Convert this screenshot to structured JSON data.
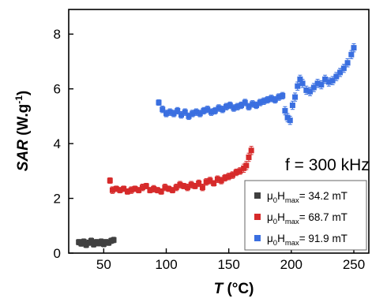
{
  "chart_data": {
    "type": "scatter",
    "title": "",
    "xlabel": {
      "italic": "T",
      "rest": " (°C)"
    },
    "ylabel": {
      "italic": "SAR",
      "rest": " (W.g",
      "sup": "-1",
      "end": ")"
    },
    "xlim": [
      22,
      262
    ],
    "ylim": [
      0,
      8.9
    ],
    "xticks": [
      50,
      100,
      150,
      200,
      250
    ],
    "yticks": [
      0,
      2,
      4,
      6,
      8
    ],
    "xtick_labels": [
      "50",
      "100",
      "150",
      "200",
      "250"
    ],
    "ytick_labels": [
      "0",
      "2",
      "4",
      "6",
      "8"
    ],
    "grid": false,
    "legend_position": "bottom-right",
    "annotation": "f = 300 kHz",
    "series": [
      {
        "name": "μ0Hmax= 34.2 mT",
        "legend": {
          "mu": "μ",
          "mu_sub": "0",
          "h": "H",
          "h_sub": "max",
          "value": "= 34.2 mT"
        },
        "color": "#404040",
        "x": [
          30,
          32,
          34,
          36,
          38,
          40,
          42,
          44,
          46,
          48,
          50,
          52,
          54,
          56,
          58
        ],
        "y": [
          0.4,
          0.35,
          0.42,
          0.3,
          0.38,
          0.45,
          0.32,
          0.4,
          0.36,
          0.42,
          0.33,
          0.4,
          0.38,
          0.45,
          0.48
        ],
        "err": [
          0.1,
          0.1,
          0.1,
          0.1,
          0.1,
          0.1,
          0.1,
          0.1,
          0.1,
          0.1,
          0.1,
          0.1,
          0.1,
          0.1,
          0.1
        ]
      },
      {
        "name": "μ0Hmax= 68.7 mT",
        "legend": {
          "mu": "μ",
          "mu_sub": "0",
          "h": "H",
          "h_sub": "max",
          "value": "= 68.7 mT"
        },
        "color": "#d62a2a",
        "x": [
          55,
          57,
          60,
          63,
          66,
          69,
          72,
          75,
          78,
          81,
          84,
          87,
          90,
          93,
          96,
          99,
          102,
          105,
          108,
          111,
          114,
          117,
          120,
          123,
          126,
          129,
          132,
          135,
          138,
          141,
          144,
          147,
          150,
          153,
          156,
          159,
          162,
          164,
          166,
          168
        ],
        "y": [
          2.65,
          2.3,
          2.35,
          2.3,
          2.35,
          2.25,
          2.3,
          2.35,
          2.3,
          2.4,
          2.45,
          2.3,
          2.35,
          2.3,
          2.25,
          2.4,
          2.35,
          2.3,
          2.4,
          2.5,
          2.45,
          2.4,
          2.5,
          2.45,
          2.55,
          2.4,
          2.6,
          2.65,
          2.55,
          2.7,
          2.65,
          2.75,
          2.8,
          2.85,
          2.95,
          3.0,
          3.1,
          3.2,
          3.5,
          3.75
        ],
        "err": [
          0.1,
          0.12,
          0.1,
          0.1,
          0.1,
          0.1,
          0.12,
          0.1,
          0.1,
          0.12,
          0.1,
          0.1,
          0.12,
          0.1,
          0.1,
          0.12,
          0.1,
          0.1,
          0.12,
          0.12,
          0.1,
          0.12,
          0.12,
          0.1,
          0.12,
          0.12,
          0.12,
          0.12,
          0.1,
          0.12,
          0.12,
          0.12,
          0.12,
          0.12,
          0.12,
          0.12,
          0.15,
          0.15,
          0.15,
          0.15
        ]
      },
      {
        "name": "μ0Hmax= 91.9 mT",
        "legend": {
          "mu": "μ",
          "mu_sub": "0",
          "h": "H",
          "h_sub": "max",
          "value": "= 91.9 mT"
        },
        "color": "#3a6fe0",
        "x": [
          94,
          97,
          100,
          103,
          106,
          109,
          112,
          115,
          118,
          121,
          124,
          127,
          130,
          133,
          136,
          139,
          142,
          145,
          148,
          151,
          154,
          157,
          160,
          163,
          166,
          169,
          172,
          175,
          178,
          181,
          184,
          187,
          190,
          193,
          195,
          197,
          199,
          201,
          203,
          205,
          207,
          209,
          212,
          215,
          218,
          221,
          224,
          227,
          230,
          233,
          236,
          239,
          242,
          245,
          248,
          250
        ],
        "y": [
          5.5,
          5.25,
          5.1,
          5.15,
          5.1,
          5.2,
          5.05,
          5.15,
          5.0,
          5.1,
          5.15,
          5.1,
          5.2,
          5.25,
          5.15,
          5.2,
          5.3,
          5.25,
          5.35,
          5.4,
          5.3,
          5.35,
          5.4,
          5.5,
          5.35,
          5.45,
          5.4,
          5.5,
          5.55,
          5.6,
          5.65,
          5.6,
          5.7,
          5.75,
          5.2,
          4.95,
          4.85,
          5.4,
          5.7,
          6.1,
          6.35,
          6.2,
          5.95,
          5.9,
          6.05,
          6.2,
          6.15,
          6.35,
          6.25,
          6.3,
          6.45,
          6.6,
          6.75,
          6.95,
          7.25,
          7.5
        ],
        "err": [
          0.1,
          0.12,
          0.12,
          0.12,
          0.12,
          0.12,
          0.12,
          0.12,
          0.12,
          0.12,
          0.12,
          0.12,
          0.12,
          0.12,
          0.12,
          0.12,
          0.12,
          0.12,
          0.12,
          0.12,
          0.12,
          0.12,
          0.12,
          0.12,
          0.12,
          0.12,
          0.12,
          0.12,
          0.12,
          0.12,
          0.12,
          0.12,
          0.12,
          0.12,
          0.15,
          0.15,
          0.15,
          0.15,
          0.15,
          0.15,
          0.15,
          0.15,
          0.15,
          0.15,
          0.15,
          0.15,
          0.15,
          0.15,
          0.15,
          0.15,
          0.15,
          0.15,
          0.15,
          0.15,
          0.15,
          0.15
        ]
      }
    ]
  }
}
